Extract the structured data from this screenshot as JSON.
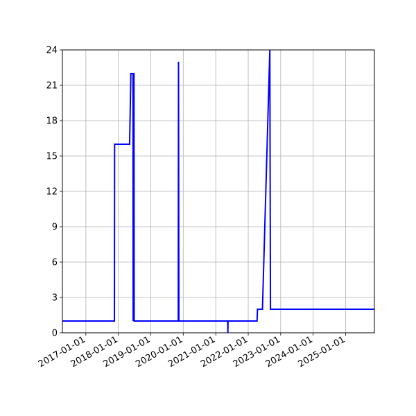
{
  "chart_data": {
    "type": "line",
    "title": "",
    "xlabel": "",
    "ylabel": "",
    "grid": true,
    "xlim": [
      "2016-04-12",
      "2025-11-20"
    ],
    "ylim": [
      0,
      24
    ],
    "xticks": [
      "2017-01-01",
      "2018-01-01",
      "2019-01-01",
      "2020-01-01",
      "2021-01-01",
      "2022-01-01",
      "2023-01-01",
      "2024-01-01",
      "2025-01-01"
    ],
    "yticks": [
      0,
      3,
      6,
      9,
      12,
      15,
      18,
      21,
      24
    ],
    "series": [
      {
        "color": "#0000ff",
        "points": [
          [
            "2016-04-12",
            1
          ],
          [
            "2017-11-18",
            1
          ],
          [
            "2017-11-20",
            16
          ],
          [
            "2018-05-08",
            16
          ],
          [
            "2018-05-22",
            22
          ],
          [
            "2018-06-15",
            22
          ],
          [
            "2018-06-17",
            1
          ],
          [
            "2018-06-22",
            22
          ],
          [
            "2018-06-26",
            22
          ],
          [
            "2018-06-28",
            1
          ],
          [
            "2019-11-06",
            1
          ],
          [
            "2019-11-09",
            23
          ],
          [
            "2019-11-13",
            1
          ],
          [
            "2021-05-15",
            1
          ],
          [
            "2021-05-17",
            0
          ],
          [
            "2021-05-19",
            1
          ],
          [
            "2022-04-10",
            1
          ],
          [
            "2022-04-15",
            2
          ],
          [
            "2022-06-10",
            2
          ],
          [
            "2022-09-01",
            24
          ],
          [
            "2022-09-08",
            2
          ],
          [
            "2025-11-20",
            2
          ]
        ]
      }
    ]
  }
}
